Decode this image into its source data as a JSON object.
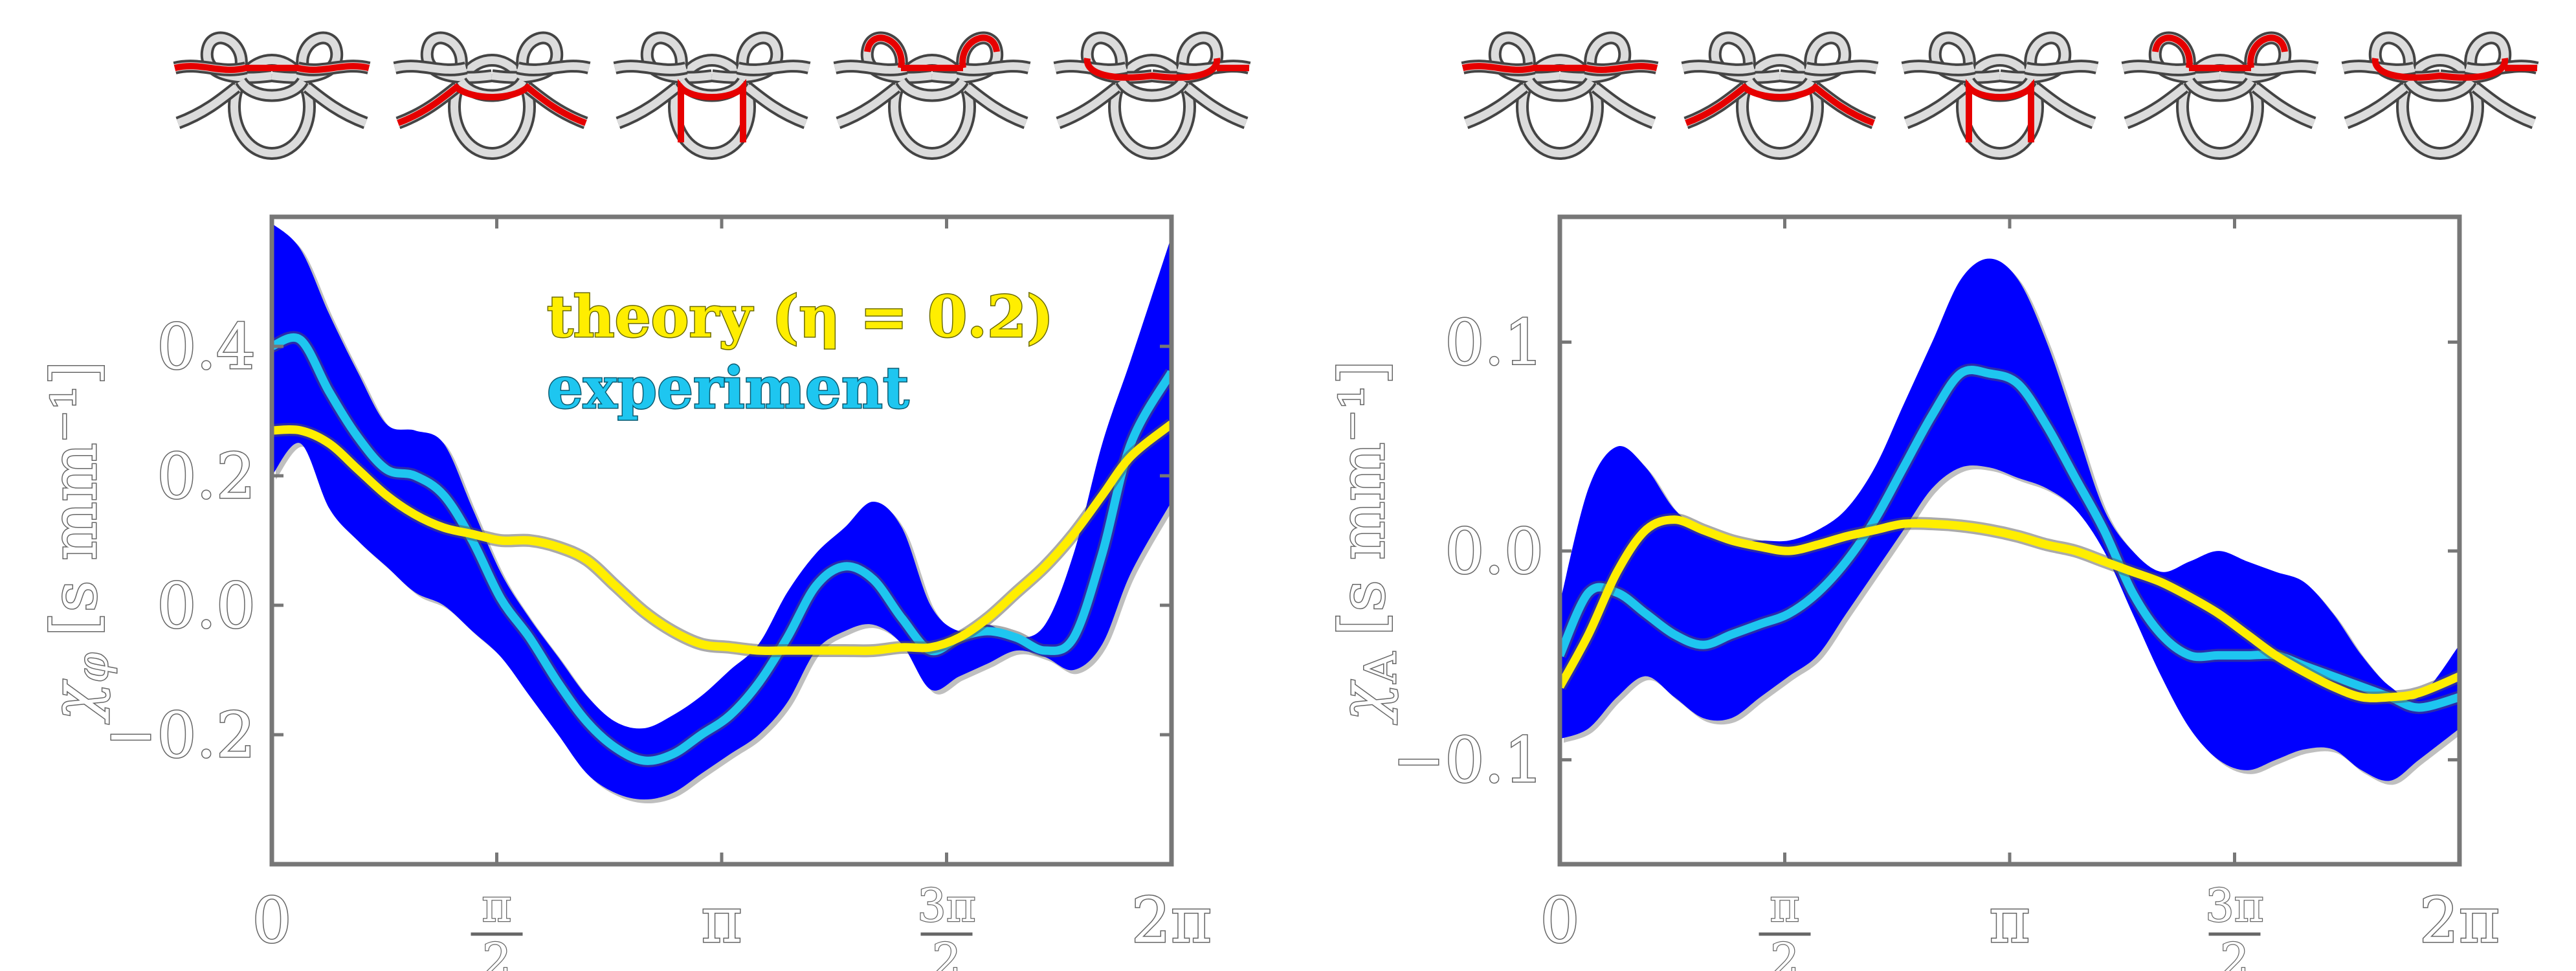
{
  "colors": {
    "band": "#0000ff",
    "experiment": "#1ec6f0",
    "theory": "#ffee00",
    "knot_body": "#dcdcdc",
    "knot_highlight": "#e60000"
  },
  "glyphs": {
    "chi": "χ",
    "phi": "φ",
    "A": "A"
  },
  "chart_data": [
    {
      "type": "line",
      "title": "",
      "ylabel": "[s mm⁻¹]",
      "ylabel_symbol": "phi",
      "xlabel": "",
      "xlim": [
        0,
        6.2832
      ],
      "ylim": [
        -0.4,
        0.6
      ],
      "xticks": [
        {
          "value": 0,
          "label": "0"
        },
        {
          "value": 1.5708,
          "num": "π",
          "den": "2"
        },
        {
          "value": 3.1416,
          "label": "π"
        },
        {
          "value": 4.7124,
          "num": "3π",
          "den": "2"
        },
        {
          "value": 6.2832,
          "label": "2π"
        }
      ],
      "yticks": [
        {
          "value": -0.2,
          "label": "−0.2"
        },
        {
          "value": 0.0,
          "label": "0.0"
        },
        {
          "value": 0.2,
          "label": "0.2"
        },
        {
          "value": 0.4,
          "label": "0.4"
        }
      ],
      "legend": {
        "placement": "top-center",
        "entries": [
          {
            "label": "theory (η = 0.2)",
            "color_key": "theory"
          },
          {
            "label": "experiment",
            "color_key": "experiment"
          }
        ]
      },
      "x": [
        0,
        0.2,
        0.4,
        0.6,
        0.8,
        1.0,
        1.2,
        1.4,
        1.6,
        1.8,
        2.0,
        2.2,
        2.4,
        2.6,
        2.8,
        3.0,
        3.2,
        3.4,
        3.6,
        3.8,
        4.0,
        4.2,
        4.4,
        4.6,
        4.8,
        5.0,
        5.2,
        5.4,
        5.6,
        5.8,
        6.0,
        6.2832
      ],
      "series": [
        {
          "kind": "band",
          "color_key": "band",
          "upper": [
            0.59,
            0.55,
            0.45,
            0.36,
            0.28,
            0.27,
            0.25,
            0.15,
            0.05,
            -0.02,
            -0.08,
            -0.14,
            -0.18,
            -0.19,
            -0.17,
            -0.14,
            -0.1,
            -0.06,
            0.02,
            0.08,
            0.12,
            0.16,
            0.12,
            0.0,
            -0.04,
            -0.03,
            -0.05,
            -0.03,
            0.08,
            0.25,
            0.38,
            0.57
          ]
        },
        {
          "kind": "band",
          "color_key": "band",
          "lower": [
            0.2,
            0.25,
            0.15,
            0.1,
            0.06,
            0.02,
            0.0,
            -0.04,
            -0.08,
            -0.14,
            -0.2,
            -0.26,
            -0.29,
            -0.3,
            -0.29,
            -0.26,
            -0.23,
            -0.2,
            -0.15,
            -0.07,
            -0.04,
            -0.03,
            -0.06,
            -0.13,
            -0.11,
            -0.09,
            -0.07,
            -0.08,
            -0.1,
            -0.06,
            0.05,
            0.16
          ]
        },
        {
          "kind": "line",
          "color_key": "experiment",
          "y": [
            0.4,
            0.41,
            0.33,
            0.26,
            0.21,
            0.2,
            0.17,
            0.1,
            0.01,
            -0.05,
            -0.12,
            -0.18,
            -0.22,
            -0.24,
            -0.23,
            -0.2,
            -0.17,
            -0.12,
            -0.05,
            0.03,
            0.06,
            0.04,
            -0.02,
            -0.07,
            -0.05,
            -0.04,
            -0.05,
            -0.07,
            -0.05,
            0.08,
            0.25,
            0.36
          ]
        },
        {
          "kind": "line",
          "color_key": "theory",
          "y": [
            0.27,
            0.27,
            0.25,
            0.21,
            0.17,
            0.14,
            0.12,
            0.11,
            0.1,
            0.1,
            0.09,
            0.07,
            0.03,
            -0.01,
            -0.04,
            -0.06,
            -0.065,
            -0.07,
            -0.07,
            -0.07,
            -0.07,
            -0.07,
            -0.065,
            -0.065,
            -0.05,
            -0.02,
            0.02,
            0.06,
            0.11,
            0.17,
            0.23,
            0.28
          ]
        }
      ]
    },
    {
      "type": "line",
      "title": "",
      "ylabel": "[s mm⁻¹]",
      "ylabel_symbol": "A",
      "xlabel": "",
      "xlim": [
        0,
        6.2832
      ],
      "ylim": [
        -0.15,
        0.16
      ],
      "xticks": [
        {
          "value": 0,
          "label": "0"
        },
        {
          "value": 1.5708,
          "num": "π",
          "den": "2"
        },
        {
          "value": 3.1416,
          "label": "π"
        },
        {
          "value": 4.7124,
          "num": "3π",
          "den": "2"
        },
        {
          "value": 6.2832,
          "label": "2π"
        }
      ],
      "yticks": [
        {
          "value": -0.1,
          "label": "−0.1"
        },
        {
          "value": 0.0,
          "label": "0.0"
        },
        {
          "value": 0.1,
          "label": "0.1"
        }
      ],
      "x": [
        0,
        0.2,
        0.4,
        0.6,
        0.8,
        1.0,
        1.2,
        1.4,
        1.6,
        1.8,
        2.0,
        2.2,
        2.4,
        2.6,
        2.8,
        3.0,
        3.2,
        3.4,
        3.6,
        3.8,
        4.0,
        4.2,
        4.4,
        4.6,
        4.8,
        5.0,
        5.2,
        5.4,
        5.6,
        5.8,
        6.0,
        6.2832
      ],
      "series": [
        {
          "kind": "band",
          "color_key": "band",
          "upper": [
            -0.025,
            0.03,
            0.05,
            0.04,
            0.02,
            0.01,
            0.005,
            0.005,
            0.005,
            0.01,
            0.02,
            0.04,
            0.07,
            0.1,
            0.13,
            0.14,
            0.13,
            0.1,
            0.06,
            0.02,
            0.0,
            -0.01,
            -0.005,
            0.0,
            -0.005,
            -0.01,
            -0.015,
            -0.03,
            -0.05,
            -0.065,
            -0.07,
            -0.045
          ]
        },
        {
          "kind": "band",
          "color_key": "band",
          "lower": [
            -0.09,
            -0.085,
            -0.07,
            -0.06,
            -0.07,
            -0.08,
            -0.08,
            -0.07,
            -0.06,
            -0.05,
            -0.03,
            -0.01,
            0.01,
            0.03,
            0.04,
            0.04,
            0.035,
            0.03,
            0.02,
            0.0,
            -0.03,
            -0.06,
            -0.085,
            -0.1,
            -0.105,
            -0.1,
            -0.095,
            -0.095,
            -0.105,
            -0.11,
            -0.1,
            -0.085
          ]
        },
        {
          "kind": "line",
          "color_key": "experiment",
          "y": [
            -0.05,
            -0.02,
            -0.02,
            -0.03,
            -0.04,
            -0.045,
            -0.04,
            -0.035,
            -0.03,
            -0.02,
            -0.005,
            0.015,
            0.04,
            0.065,
            0.085,
            0.085,
            0.08,
            0.06,
            0.035,
            0.01,
            -0.02,
            -0.04,
            -0.05,
            -0.05,
            -0.05,
            -0.05,
            -0.055,
            -0.06,
            -0.065,
            -0.07,
            -0.075,
            -0.07
          ]
        },
        {
          "kind": "line",
          "color_key": "theory",
          "y": [
            -0.065,
            -0.04,
            -0.01,
            0.01,
            0.015,
            0.01,
            0.005,
            0.002,
            0.0,
            0.003,
            0.007,
            0.01,
            0.013,
            0.013,
            0.012,
            0.01,
            0.007,
            0.003,
            0.0,
            -0.005,
            -0.01,
            -0.015,
            -0.022,
            -0.03,
            -0.04,
            -0.05,
            -0.058,
            -0.065,
            -0.07,
            -0.07,
            -0.068,
            -0.06
          ]
        }
      ]
    }
  ]
}
